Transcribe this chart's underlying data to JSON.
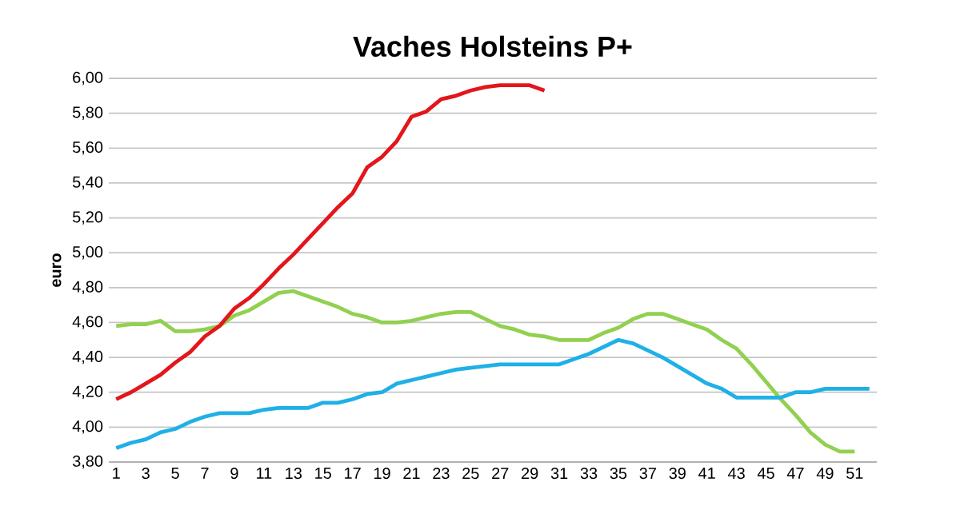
{
  "chart_data": {
    "type": "line",
    "title": "Vaches Holsteins P+",
    "ylabel": "euro",
    "categories": [
      "1",
      null,
      "3",
      null,
      "5",
      null,
      "7",
      null,
      "9",
      null,
      "11",
      null,
      "13",
      null,
      "15",
      null,
      "17",
      null,
      "19",
      null,
      "21",
      null,
      "23",
      null,
      "25",
      null,
      "27",
      null,
      "29",
      null,
      "31",
      null,
      "33",
      null,
      "35",
      null,
      "37",
      null,
      "39",
      null,
      "41",
      null,
      "43",
      null,
      "45",
      null,
      "47",
      null,
      "49",
      null,
      "51",
      null
    ],
    "series": [
      {
        "color": "#92d050",
        "values": [
          4.58,
          4.59,
          4.59,
          4.61,
          4.55,
          4.55,
          4.56,
          4.58,
          4.64,
          4.67,
          4.72,
          4.77,
          4.78,
          4.75,
          4.72,
          4.69,
          4.65,
          4.63,
          4.6,
          4.6,
          4.61,
          4.63,
          4.65,
          4.66,
          4.66,
          4.62,
          4.58,
          4.56,
          4.53,
          4.52,
          4.5,
          4.5,
          4.5,
          4.54,
          4.57,
          4.62,
          4.65,
          4.65,
          4.62,
          4.59,
          4.56,
          4.5,
          4.45,
          4.36,
          4.26,
          4.16,
          4.07,
          3.97,
          3.9,
          3.86,
          3.86,
          null
        ]
      },
      {
        "color": "#1fb0e6",
        "values": [
          3.88,
          3.91,
          3.93,
          3.97,
          3.99,
          4.03,
          4.06,
          4.08,
          4.08,
          4.08,
          4.1,
          4.11,
          4.11,
          4.11,
          4.14,
          4.14,
          4.16,
          4.19,
          4.2,
          4.25,
          4.27,
          4.29,
          4.31,
          4.33,
          4.34,
          4.35,
          4.36,
          4.36,
          4.36,
          4.36,
          4.36,
          4.39,
          4.42,
          4.46,
          4.5,
          4.48,
          4.44,
          4.4,
          4.35,
          4.3,
          4.25,
          4.22,
          4.17,
          4.17,
          4.17,
          4.17,
          4.2,
          4.2,
          4.22,
          4.22,
          4.22,
          4.22
        ]
      },
      {
        "color": "#e3161b",
        "values": [
          4.16,
          4.2,
          4.25,
          4.3,
          4.37,
          4.43,
          4.52,
          4.58,
          4.68,
          4.74,
          4.82,
          4.91,
          4.99,
          5.08,
          5.17,
          5.26,
          5.34,
          5.49,
          5.55,
          5.64,
          5.78,
          5.81,
          5.88,
          5.9,
          5.93,
          5.95,
          5.96,
          5.96,
          5.96,
          5.93,
          null,
          null,
          null,
          null,
          null,
          null,
          null,
          null,
          null,
          null,
          null,
          null,
          null,
          null,
          null,
          null,
          null,
          null,
          null,
          null,
          null,
          null
        ]
      }
    ],
    "ylim": [
      3.8,
      6.0
    ],
    "yticks": [
      {
        "value": 3.8,
        "label": "3,80"
      },
      {
        "value": 4.0,
        "label": "4,00"
      },
      {
        "value": 4.2,
        "label": "4,20"
      },
      {
        "value": 4.4,
        "label": "4,40"
      },
      {
        "value": 4.6,
        "label": "4,60"
      },
      {
        "value": 4.8,
        "label": "4,80"
      },
      {
        "value": 5.0,
        "label": "5,00"
      },
      {
        "value": 5.2,
        "label": "5,20"
      },
      {
        "value": 5.4,
        "label": "5,40"
      },
      {
        "value": 5.6,
        "label": "5,60"
      },
      {
        "value": 5.8,
        "label": "5,80"
      },
      {
        "value": 6.0,
        "label": "6,00"
      }
    ],
    "grid": "y",
    "marker": "none",
    "line_style": "solid"
  }
}
